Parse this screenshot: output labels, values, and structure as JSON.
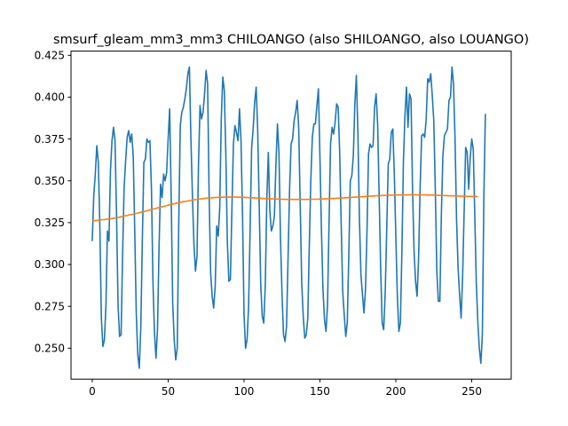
{
  "chart_data": {
    "type": "line",
    "title": "smsurf_gleam_mm3_mm3 CHILOANGO (also SHILOANGO, also LOUANGO)",
    "xlabel": "",
    "ylabel": "",
    "xlim": [
      -14,
      276
    ],
    "ylim": [
      0.2315,
      0.4275
    ],
    "grid": false,
    "x_ticks": [
      0,
      50,
      100,
      150,
      200,
      250
    ],
    "x_tick_labels": [
      "0",
      "50",
      "100",
      "150",
      "200",
      "250"
    ],
    "y_ticks": [
      0.25,
      0.275,
      0.3,
      0.325,
      0.35,
      0.375,
      0.4,
      0.425
    ],
    "y_tick_labels": [
      "0.250",
      "0.275",
      "0.300",
      "0.325",
      "0.350",
      "0.375",
      "0.400",
      "0.425"
    ],
    "series": [
      {
        "color": "#1f77b4",
        "values": [
          0.314,
          0.341,
          0.354,
          0.371,
          0.361,
          0.323,
          0.268,
          0.251,
          0.255,
          0.275,
          0.32,
          0.314,
          0.356,
          0.374,
          0.382,
          0.374,
          0.33,
          0.276,
          0.257,
          0.258,
          0.306,
          0.346,
          0.362,
          0.376,
          0.38,
          0.373,
          0.378,
          0.365,
          0.32,
          0.271,
          0.246,
          0.238,
          0.263,
          0.315,
          0.361,
          0.363,
          0.375,
          0.373,
          0.374,
          0.345,
          0.289,
          0.259,
          0.244,
          0.262,
          0.31,
          0.348,
          0.34,
          0.354,
          0.35,
          0.355,
          0.375,
          0.393,
          0.341,
          0.277,
          0.255,
          0.243,
          0.25,
          0.326,
          0.383,
          0.391,
          0.394,
          0.399,
          0.405,
          0.414,
          0.418,
          0.375,
          0.341,
          0.312,
          0.296,
          0.305,
          0.36,
          0.395,
          0.387,
          0.391,
          0.402,
          0.416,
          0.408,
          0.341,
          0.295,
          0.281,
          0.274,
          0.287,
          0.323,
          0.317,
          0.334,
          0.387,
          0.412,
          0.404,
          0.366,
          0.313,
          0.29,
          0.291,
          0.333,
          0.372,
          0.383,
          0.379,
          0.374,
          0.393,
          0.374,
          0.33,
          0.27,
          0.25,
          0.255,
          0.275,
          0.321,
          0.37,
          0.381,
          0.397,
          0.406,
          0.38,
          0.335,
          0.288,
          0.269,
          0.265,
          0.288,
          0.339,
          0.367,
          0.332,
          0.32,
          0.323,
          0.329,
          0.36,
          0.384,
          0.367,
          0.316,
          0.283,
          0.258,
          0.254,
          0.263,
          0.304,
          0.345,
          0.372,
          0.375,
          0.386,
          0.391,
          0.398,
          0.382,
          0.336,
          0.289,
          0.269,
          0.256,
          0.258,
          0.268,
          0.312,
          0.351,
          0.376,
          0.384,
          0.384,
          0.395,
          0.405,
          0.364,
          0.32,
          0.285,
          0.267,
          0.26,
          0.276,
          0.325,
          0.372,
          0.382,
          0.378,
          0.385,
          0.396,
          0.394,
          0.367,
          0.324,
          0.284,
          0.27,
          0.257,
          0.265,
          0.305,
          0.35,
          0.353,
          0.365,
          0.396,
          0.413,
          0.379,
          0.328,
          0.294,
          0.282,
          0.271,
          0.285,
          0.32,
          0.366,
          0.372,
          0.37,
          0.371,
          0.394,
          0.402,
          0.384,
          0.342,
          0.298,
          0.265,
          0.261,
          0.283,
          0.321,
          0.36,
          0.363,
          0.379,
          0.381,
          0.354,
          0.317,
          0.281,
          0.26,
          0.265,
          0.308,
          0.362,
          0.389,
          0.406,
          0.382,
          0.402,
          0.399,
          0.345,
          0.308,
          0.29,
          0.281,
          0.304,
          0.346,
          0.377,
          0.378,
          0.376,
          0.387,
          0.411,
          0.409,
          0.414,
          0.401,
          0.386,
          0.345,
          0.296,
          0.278,
          0.278,
          0.33,
          0.365,
          0.377,
          0.379,
          0.381,
          0.398,
          0.4,
          0.418,
          0.408,
          0.375,
          0.327,
          0.298,
          0.282,
          0.268,
          0.293,
          0.332,
          0.37,
          0.367,
          0.345,
          0.364,
          0.375,
          0.369,
          0.33,
          0.289,
          0.266,
          0.25,
          0.241,
          0.258,
          0.341,
          0.39
        ]
      },
      {
        "color": "#ff7f0e",
        "values": [
          0.3262,
          0.3262,
          0.3263,
          0.3264,
          0.3265,
          0.3266,
          0.3267,
          0.3268,
          0.3269,
          0.327,
          0.3271,
          0.3272,
          0.3273,
          0.3275,
          0.3276,
          0.3278,
          0.3279,
          0.3281,
          0.3283,
          0.3285,
          0.3287,
          0.3289,
          0.3291,
          0.3293,
          0.3295,
          0.3297,
          0.3299,
          0.3301,
          0.3303,
          0.3305,
          0.3307,
          0.331,
          0.3312,
          0.3314,
          0.3316,
          0.3319,
          0.3321,
          0.3323,
          0.3326,
          0.3328,
          0.3331,
          0.3333,
          0.3335,
          0.3338,
          0.334,
          0.3342,
          0.3345,
          0.3347,
          0.3349,
          0.3352,
          0.3354,
          0.3356,
          0.3358,
          0.3361,
          0.3363,
          0.3365,
          0.3367,
          0.3369,
          0.3371,
          0.3373,
          0.3375,
          0.3377,
          0.3378,
          0.338,
          0.3382,
          0.3383,
          0.3385,
          0.3386,
          0.3388,
          0.3389,
          0.339,
          0.3392,
          0.3393,
          0.3394,
          0.3395,
          0.3396,
          0.3397,
          0.3398,
          0.3398,
          0.3399,
          0.34,
          0.34,
          0.3401,
          0.3401,
          0.3402,
          0.3402,
          0.3402,
          0.3403,
          0.3403,
          0.3403,
          0.3403,
          0.3403,
          0.3403,
          0.3403,
          0.3403,
          0.3403,
          0.3402,
          0.3402,
          0.3402,
          0.3402,
          0.3401,
          0.3401,
          0.34,
          0.34,
          0.3399,
          0.3399,
          0.3398,
          0.3398,
          0.3397,
          0.3397,
          0.3396,
          0.3396,
          0.3395,
          0.3395,
          0.3394,
          0.3394,
          0.3393,
          0.3393,
          0.3392,
          0.3392,
          0.3392,
          0.3391,
          0.3391,
          0.3391,
          0.339,
          0.339,
          0.339,
          0.339,
          0.3389,
          0.3389,
          0.3389,
          0.3389,
          0.3389,
          0.3389,
          0.3389,
          0.3389,
          0.3389,
          0.3389,
          0.3389,
          0.3389,
          0.3389,
          0.3389,
          0.3389,
          0.3389,
          0.3389,
          0.339,
          0.339,
          0.339,
          0.339,
          0.3391,
          0.3391,
          0.3391,
          0.3392,
          0.3392,
          0.3392,
          0.3393,
          0.3393,
          0.3394,
          0.3394,
          0.3395,
          0.3395,
          0.3396,
          0.3396,
          0.3397,
          0.3397,
          0.3398,
          0.3398,
          0.3399,
          0.3399,
          0.34,
          0.3401,
          0.3401,
          0.3402,
          0.3402,
          0.3403,
          0.3404,
          0.3404,
          0.3405,
          0.3405,
          0.3406,
          0.3407,
          0.3407,
          0.3408,
          0.3408,
          0.3409,
          0.3409,
          0.341,
          0.341,
          0.3411,
          0.3411,
          0.3412,
          0.3412,
          0.3413,
          0.3413,
          0.3413,
          0.3414,
          0.3414,
          0.3414,
          0.3415,
          0.3415,
          0.3415,
          0.3415,
          0.3416,
          0.3416,
          0.3416,
          0.3416,
          0.3416,
          0.3416,
          0.3416,
          0.3417,
          0.3417,
          0.3417,
          0.3417,
          0.3417,
          0.3416,
          0.3416,
          0.3416,
          0.3416,
          0.3416,
          0.3416,
          0.3416,
          0.3415,
          0.3415,
          0.3415,
          0.3415,
          0.3414,
          0.3414,
          0.3414,
          0.3413,
          0.3413,
          0.3413,
          0.3412,
          0.3412,
          0.3412,
          0.3411,
          0.3411,
          0.3411,
          0.341,
          0.341,
          0.341,
          0.3409,
          0.3409,
          0.3409,
          0.3408,
          0.3408,
          0.3408,
          0.3408,
          0.3407,
          0.3407,
          0.3407,
          0.3407,
          0.3406,
          0.3406,
          0.3406,
          0.3406
        ]
      }
    ]
  }
}
